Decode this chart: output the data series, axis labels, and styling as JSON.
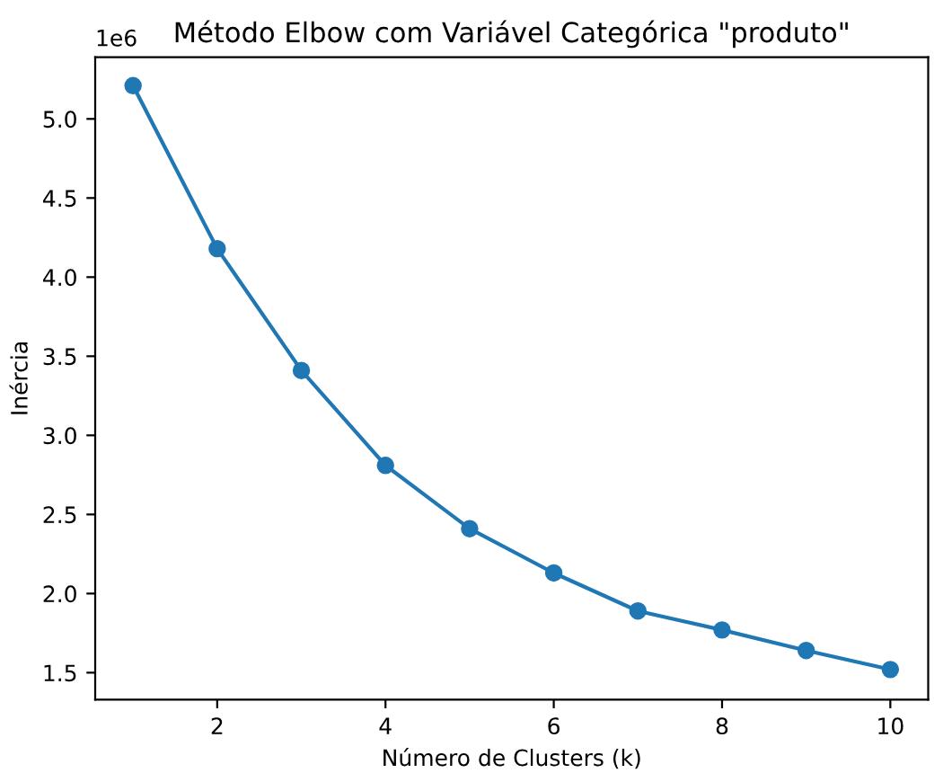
{
  "chart_data": {
    "type": "line",
    "title": "Método Elbow com Variável Categórica \"produto\"",
    "xlabel": "Número de Clusters (k)",
    "ylabel": "Inércia",
    "annotations": [
      "1e6"
    ],
    "x": [
      1,
      2,
      3,
      4,
      5,
      6,
      7,
      8,
      9,
      10
    ],
    "series": [
      {
        "color": "#1f77b4",
        "values": [
          5.21,
          4.18,
          3.41,
          2.81,
          2.41,
          2.13,
          1.89,
          1.77,
          1.64,
          1.52
        ]
      }
    ],
    "xlim": [
      0.55,
      10.45
    ],
    "xticks": [
      2,
      4,
      6,
      8,
      10
    ],
    "ylim": [
      1.33,
      5.39
    ],
    "yticks": [
      {
        "value": 1.5,
        "label": "1.5"
      },
      {
        "value": 2.0,
        "label": "2.0"
      },
      {
        "value": 2.5,
        "label": "2.5"
      },
      {
        "value": 3.0,
        "label": "3.0"
      },
      {
        "value": 3.5,
        "label": "3.5"
      },
      {
        "value": 4.0,
        "label": "4.0"
      },
      {
        "value": 4.5,
        "label": "4.5"
      },
      {
        "value": 5.0,
        "label": "5.0"
      }
    ],
    "marker": "circle",
    "line_style": "solid",
    "grid": false,
    "legend": false
  }
}
